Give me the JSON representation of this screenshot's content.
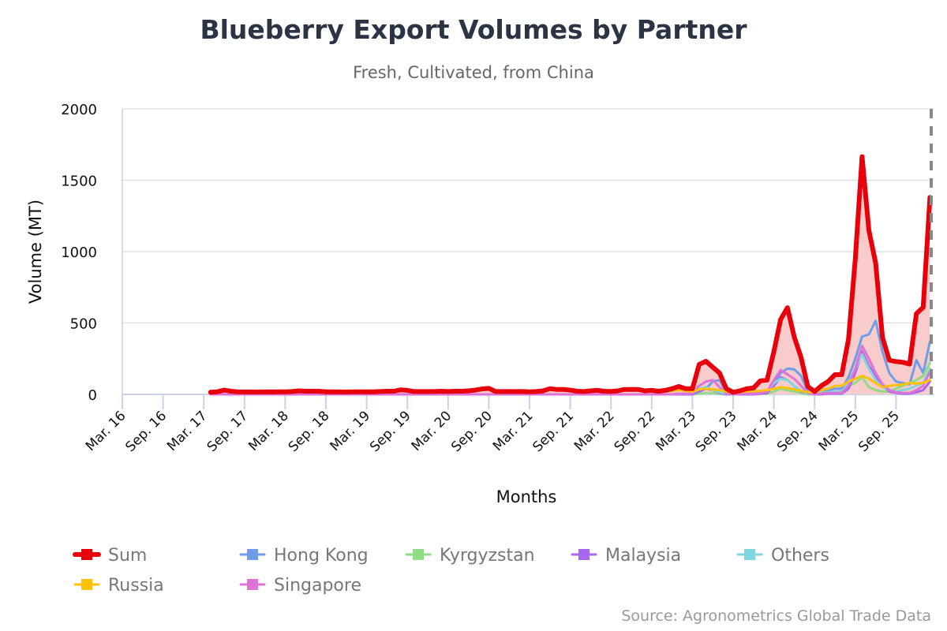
{
  "chart_data": {
    "type": "line",
    "title": "Blueberry Export Volumes by Partner",
    "subtitle": "Fresh, Cultivated, from China",
    "xlabel": "Months",
    "ylabel": "Volume (MT)",
    "source": "Source: Agronometrics Global Trade Data",
    "ylim": [
      0,
      2000
    ],
    "yticks": [
      "0",
      "500",
      "1000",
      "1500",
      "2000"
    ],
    "xticks": [
      "Mar. 16",
      "Sep. 16",
      "Mar. 17",
      "Sep. 17",
      "Mar. 18",
      "Sep. 18",
      "Mar. 19",
      "Sep. 19",
      "Mar. 20",
      "Sep. 20",
      "Mar. 21",
      "Sep. 21",
      "Mar. 22",
      "Sep. 22",
      "Mar. 23",
      "Sep. 23",
      "Mar. 24",
      "Sep. 24",
      "Mar. 25",
      "Sep. 25"
    ],
    "x_range": [
      "2016-03",
      "2026-02"
    ],
    "x_start": "2017-04",
    "frequency": "monthly",
    "grid": true,
    "legend_position": "bottom",
    "sum_area_fill": "#f9cccc",
    "series": [
      {
        "name": "Sum",
        "color": "#e8000b",
        "values": [
          15,
          18,
          30,
          22,
          18,
          17,
          17,
          17,
          18,
          17,
          18,
          18,
          20,
          25,
          22,
          22,
          22,
          18,
          18,
          17,
          17,
          18,
          18,
          18,
          18,
          20,
          22,
          22,
          32,
          28,
          20,
          20,
          20,
          20,
          22,
          20,
          22,
          22,
          25,
          30,
          38,
          42,
          20,
          20,
          20,
          20,
          20,
          18,
          20,
          25,
          40,
          35,
          35,
          30,
          22,
          20,
          25,
          28,
          22,
          20,
          25,
          35,
          35,
          35,
          25,
          28,
          22,
          28,
          40,
          55,
          40,
          40,
          210,
          232,
          190,
          150,
          40,
          15,
          25,
          40,
          45,
          95,
          100,
          300,
          525,
          607,
          403,
          260,
          55,
          20,
          60,
          90,
          138,
          138,
          387,
          950,
          1665,
          1150,
          920,
          400,
          240,
          230,
          225,
          212,
          565,
          610,
          1380
        ]
      },
      {
        "name": "Hong Kong",
        "color": "#6f9be8",
        "values": [
          0,
          0,
          0,
          0,
          0,
          0,
          0,
          0,
          0,
          0,
          0,
          0,
          0,
          0,
          0,
          0,
          0,
          0,
          0,
          0,
          0,
          0,
          0,
          0,
          0,
          0,
          0,
          0,
          0,
          0,
          0,
          0,
          0,
          0,
          0,
          0,
          0,
          0,
          0,
          0,
          0,
          0,
          0,
          0,
          0,
          0,
          0,
          0,
          0,
          0,
          0,
          0,
          0,
          0,
          0,
          0,
          0,
          0,
          0,
          0,
          0,
          0,
          0,
          0,
          0,
          0,
          0,
          0,
          0,
          0,
          0,
          0,
          20,
          40,
          90,
          100,
          10,
          0,
          5,
          10,
          10,
          10,
          15,
          80,
          150,
          180,
          175,
          130,
          20,
          5,
          10,
          30,
          40,
          40,
          120,
          250,
          405,
          420,
          515,
          300,
          150,
          90,
          80,
          70,
          240,
          150,
          370
        ]
      },
      {
        "name": "Kyrgyzstan",
        "color": "#8fdc84",
        "values": [
          0,
          0,
          0,
          0,
          0,
          0,
          0,
          0,
          0,
          0,
          0,
          0,
          0,
          0,
          0,
          0,
          0,
          0,
          0,
          0,
          0,
          0,
          0,
          0,
          0,
          0,
          0,
          0,
          0,
          0,
          0,
          0,
          0,
          0,
          0,
          0,
          0,
          0,
          0,
          0,
          0,
          0,
          0,
          0,
          0,
          0,
          0,
          0,
          0,
          0,
          0,
          0,
          0,
          0,
          0,
          0,
          0,
          0,
          0,
          0,
          0,
          0,
          0,
          0,
          0,
          0,
          0,
          0,
          0,
          0,
          0,
          0,
          5,
          10,
          10,
          5,
          0,
          0,
          0,
          0,
          0,
          5,
          5,
          20,
          40,
          30,
          20,
          10,
          0,
          0,
          5,
          10,
          15,
          20,
          60,
          80,
          120,
          50,
          30,
          20,
          20,
          40,
          60,
          80,
          100,
          130,
          220
        ]
      },
      {
        "name": "Malaysia",
        "color": "#a867f0",
        "values": [
          0,
          0,
          0,
          0,
          0,
          0,
          0,
          0,
          0,
          0,
          0,
          0,
          0,
          0,
          0,
          0,
          0,
          0,
          0,
          0,
          0,
          0,
          0,
          0,
          0,
          0,
          0,
          0,
          0,
          0,
          0,
          0,
          0,
          0,
          0,
          0,
          0,
          0,
          0,
          0,
          0,
          0,
          0,
          0,
          0,
          0,
          0,
          0,
          0,
          0,
          0,
          0,
          0,
          0,
          0,
          0,
          0,
          0,
          0,
          0,
          0,
          0,
          0,
          0,
          0,
          0,
          0,
          0,
          0,
          0,
          0,
          0,
          20,
          40,
          30,
          10,
          0,
          0,
          0,
          0,
          0,
          5,
          10,
          60,
          120,
          100,
          60,
          20,
          5,
          0,
          0,
          5,
          5,
          5,
          40,
          150,
          300,
          200,
          130,
          60,
          20,
          10,
          5,
          5,
          15,
          30,
          90
        ]
      },
      {
        "name": "Others",
        "color": "#7fd6dc",
        "values": [
          0,
          0,
          0,
          0,
          0,
          0,
          0,
          0,
          0,
          0,
          0,
          0,
          0,
          0,
          0,
          0,
          0,
          0,
          0,
          0,
          0,
          0,
          0,
          0,
          0,
          0,
          0,
          0,
          0,
          0,
          0,
          0,
          0,
          0,
          0,
          0,
          0,
          0,
          0,
          0,
          0,
          0,
          0,
          0,
          0,
          0,
          0,
          0,
          0,
          0,
          0,
          0,
          0,
          0,
          0,
          0,
          0,
          0,
          0,
          0,
          0,
          0,
          0,
          0,
          0,
          0,
          0,
          0,
          0,
          5,
          5,
          10,
          40,
          50,
          30,
          15,
          5,
          0,
          5,
          5,
          10,
          15,
          20,
          80,
          110,
          100,
          60,
          25,
          5,
          0,
          10,
          15,
          20,
          20,
          80,
          180,
          280,
          180,
          100,
          50,
          30,
          20,
          30,
          40,
          60,
          80,
          180
        ]
      },
      {
        "name": "Russia",
        "color": "#ffc107",
        "values": [
          12,
          15,
          26,
          19,
          15,
          14,
          14,
          14,
          15,
          14,
          15,
          15,
          17,
          21,
          19,
          19,
          19,
          15,
          15,
          14,
          14,
          15,
          15,
          15,
          15,
          17,
          19,
          19,
          28,
          24,
          17,
          17,
          17,
          17,
          19,
          17,
          19,
          19,
          22,
          26,
          34,
          38,
          17,
          17,
          17,
          17,
          17,
          15,
          17,
          22,
          35,
          30,
          30,
          26,
          19,
          17,
          20,
          22,
          18,
          16,
          20,
          28,
          28,
          28,
          20,
          22,
          18,
          20,
          25,
          30,
          25,
          20,
          35,
          40,
          35,
          30,
          20,
          10,
          15,
          20,
          22,
          25,
          30,
          40,
          50,
          45,
          35,
          25,
          15,
          15,
          30,
          40,
          60,
          60,
          90,
          110,
          130,
          110,
          80,
          50,
          60,
          65,
          70,
          80,
          75,
          80,
          100
        ]
      },
      {
        "name": "Singapore",
        "color": "#de72d6",
        "values": [
          0,
          0,
          0,
          0,
          0,
          0,
          0,
          0,
          0,
          0,
          0,
          0,
          0,
          0,
          0,
          0,
          0,
          0,
          0,
          0,
          0,
          0,
          0,
          0,
          0,
          0,
          0,
          0,
          0,
          0,
          0,
          0,
          0,
          0,
          0,
          0,
          0,
          0,
          0,
          0,
          0,
          0,
          0,
          0,
          0,
          0,
          0,
          0,
          0,
          0,
          0,
          0,
          0,
          0,
          0,
          0,
          0,
          0,
          0,
          0,
          0,
          0,
          0,
          0,
          0,
          0,
          0,
          0,
          0,
          5,
          5,
          5,
          60,
          90,
          100,
          50,
          5,
          0,
          5,
          5,
          5,
          10,
          20,
          100,
          170,
          140,
          110,
          60,
          10,
          0,
          5,
          10,
          10,
          10,
          60,
          180,
          340,
          250,
          150,
          70,
          30,
          15,
          10,
          10,
          30,
          60,
          160
        ]
      }
    ]
  }
}
